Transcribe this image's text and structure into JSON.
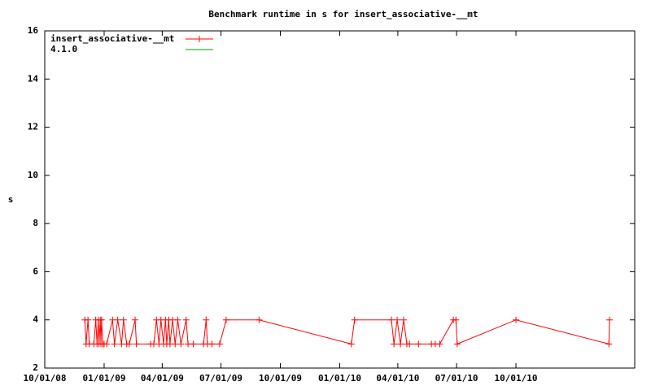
{
  "chart_data": {
    "type": "line",
    "title": "Benchmark runtime in s for insert_associative-__mt",
    "y_label": "s",
    "x": [
      "2008-12-02",
      "2008-12-04",
      "2008-12-07",
      "2008-12-09",
      "2008-12-16",
      "2008-12-19",
      "2008-12-21",
      "2008-12-23",
      "2008-12-24",
      "2008-12-26",
      "2008-12-27",
      "2008-12-28",
      "2008-12-30",
      "2009-01-01",
      "2009-01-05",
      "2009-01-14",
      "2009-01-17",
      "2009-01-22",
      "2009-01-28",
      "2009-01-31",
      "2009-02-05",
      "2009-02-09",
      "2009-02-18",
      "2009-02-20",
      "2009-03-14",
      "2009-03-19",
      "2009-03-23",
      "2009-03-27",
      "2009-03-30",
      "2009-04-03",
      "2009-04-06",
      "2009-04-08",
      "2009-04-11",
      "2009-04-13",
      "2009-04-17",
      "2009-04-21",
      "2009-04-25",
      "2009-04-30",
      "2009-05-08",
      "2009-05-11",
      "2009-05-19",
      "2009-06-04",
      "2009-06-08",
      "2009-06-10",
      "2009-06-17",
      "2009-06-29",
      "2009-07-09",
      "2009-08-29",
      "2010-01-19",
      "2010-01-24",
      "2010-03-22",
      "2010-03-26",
      "2010-03-31",
      "2010-04-05",
      "2010-04-10",
      "2010-04-15",
      "2010-04-19",
      "2010-05-03",
      "2010-05-23",
      "2010-05-29",
      "2010-06-05",
      "2010-06-26",
      "2010-06-30",
      "2010-07-02",
      "2010-10-01",
      "2011-02-22",
      "2011-02-23"
    ],
    "series": [
      {
        "name": "insert_associative-__mt",
        "color": "#ff0000",
        "values": [
          4,
          3,
          4,
          3,
          3,
          4,
          3,
          4,
          3,
          4,
          3,
          4,
          3,
          3,
          3,
          4,
          3,
          4,
          3,
          4,
          3,
          3,
          4,
          3,
          3,
          3,
          4,
          3,
          4,
          3,
          4,
          3,
          4,
          3,
          4,
          3,
          4,
          3,
          4,
          3,
          3,
          3,
          4,
          3,
          3,
          3,
          4,
          4,
          3,
          4,
          4,
          3,
          4,
          3,
          4,
          3,
          3,
          3,
          3,
          3,
          3,
          4,
          4,
          3,
          4,
          3,
          4
        ]
      },
      {
        "name": "4.1.0",
        "color": "#00a000",
        "values": [
          null,
          null,
          null,
          null,
          null,
          null,
          null,
          null,
          null,
          null,
          null,
          null,
          null,
          null,
          null,
          null,
          null,
          null,
          null,
          null,
          null,
          null,
          null,
          null,
          null,
          null,
          null,
          null,
          null,
          null,
          null,
          null,
          null,
          null,
          null,
          null,
          null,
          null,
          null,
          null,
          null,
          null,
          null,
          null,
          null,
          null,
          null,
          null,
          null,
          null,
          null,
          null,
          null,
          null,
          null,
          null,
          null,
          null,
          null,
          null,
          null,
          null,
          null,
          null,
          null,
          null,
          null
        ]
      }
    ],
    "xlim": [
      "2008-10-01",
      "2011-04-03"
    ],
    "xticks": [
      {
        "value": "2008-10-01",
        "label": "10/01/08"
      },
      {
        "value": "2009-01-01",
        "label": "01/01/09"
      },
      {
        "value": "2009-04-01",
        "label": "04/01/09"
      },
      {
        "value": "2009-07-01",
        "label": "07/01/09"
      },
      {
        "value": "2009-10-01",
        "label": "10/01/09"
      },
      {
        "value": "2010-01-01",
        "label": "01/01/10"
      },
      {
        "value": "2010-04-01",
        "label": "04/01/10"
      },
      {
        "value": "2010-07-01",
        "label": "07/01/10"
      },
      {
        "value": "2010-10-01",
        "label": "10/01/10"
      }
    ],
    "ylim": [
      2,
      16
    ],
    "yticks": [
      2,
      4,
      6,
      8,
      10,
      12,
      14,
      16
    ],
    "legend": "top-left"
  }
}
